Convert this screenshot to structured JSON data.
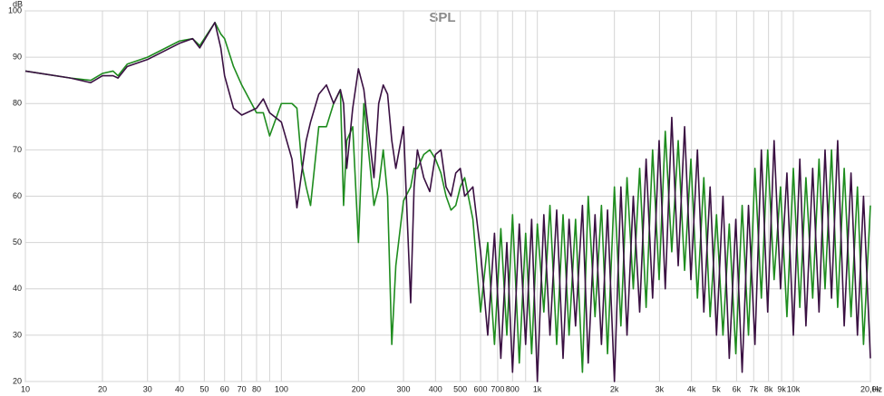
{
  "chart_data": {
    "type": "line",
    "title": "SPL",
    "y_unit": "dB",
    "x_unit": "Hz",
    "xlog": true,
    "grid": true,
    "xlim": [
      10,
      20000
    ],
    "ylim": [
      20,
      100
    ],
    "yticks": [
      20,
      30,
      40,
      50,
      60,
      70,
      80,
      90,
      100
    ],
    "xticks": [
      10,
      20,
      30,
      40,
      50,
      60,
      70,
      80,
      100,
      200,
      300,
      400,
      500,
      600,
      700,
      800,
      {
        "value": 1000,
        "label": "1k"
      },
      {
        "value": 2000,
        "label": "2k"
      },
      {
        "value": 3000,
        "label": "3k"
      },
      {
        "value": 4000,
        "label": "4k"
      },
      {
        "value": 5000,
        "label": "5k"
      },
      {
        "value": 6000,
        "label": "6k"
      },
      {
        "value": 7000,
        "label": "7k"
      },
      {
        "value": 8000,
        "label": "8k"
      },
      {
        "value": 9000,
        "label": "9k"
      },
      {
        "value": 10000,
        "label": "10k"
      },
      {
        "value": 20000,
        "label": "20,0k"
      }
    ],
    "xminor": [
      90,
      900
    ],
    "x": [
      10,
      15,
      18,
      20,
      22,
      23,
      25,
      30,
      40,
      45,
      48,
      55,
      58,
      60,
      65,
      70,
      80,
      85,
      90,
      100,
      110,
      115,
      120,
      125,
      130,
      140,
      150,
      160,
      170,
      175,
      180,
      190,
      200,
      210,
      230,
      240,
      250,
      260,
      270,
      280,
      300,
      320,
      330,
      340,
      360,
      380,
      400,
      420,
      440,
      460,
      480,
      500,
      520,
      560,
      600,
      640,
      680,
      720,
      760,
      800,
      850,
      900,
      950,
      1000,
      1060,
      1120,
      1190,
      1260,
      1330,
      1410,
      1500,
      1580,
      1680,
      1780,
      1880,
      2000,
      2120,
      2240,
      2370,
      2510,
      2660,
      2820,
      2990,
      3160,
      3350,
      3550,
      3760,
      3980,
      4220,
      4470,
      4730,
      5010,
      5310,
      5620,
      5960,
      6310,
      6680,
      7080,
      7500,
      7940,
      8410,
      8910,
      9440,
      10000,
      10600,
      11200,
      11900,
      12600,
      13300,
      14100,
      14900,
      15800,
      16800,
      17800,
      18800,
      20000
    ],
    "series": [
      {
        "color": "#1e8c1e",
        "values": [
          87,
          85.5,
          85,
          86.5,
          87,
          86,
          88.5,
          90,
          93.5,
          94,
          92.5,
          97.5,
          95,
          94,
          88,
          84,
          78,
          78,
          73,
          80,
          80,
          79,
          67,
          62,
          58,
          75,
          75,
          80,
          83,
          58,
          72,
          75,
          50,
          80,
          58,
          62,
          70,
          60,
          28,
          45,
          59,
          62,
          66,
          66,
          69,
          70,
          68,
          65,
          60,
          57,
          58,
          62,
          64,
          55,
          35,
          50,
          28,
          53,
          30,
          56,
          24,
          52,
          26,
          54,
          35,
          58,
          28,
          56,
          30,
          55,
          22,
          60,
          34,
          58,
          26,
          62,
          32,
          64,
          40,
          66,
          36,
          70,
          42,
          74,
          48,
          72,
          44,
          68,
          38,
          64,
          34,
          56,
          30,
          54,
          26,
          58,
          30,
          66,
          38,
          70,
          42,
          62,
          34,
          66,
          36,
          64,
          38,
          68,
          40,
          70,
          36,
          66,
          34,
          62,
          28,
          58
        ]
      },
      {
        "color": "#3a1042",
        "values": [
          87,
          85.5,
          84.5,
          86,
          86,
          85.5,
          88,
          89.5,
          93,
          94,
          92,
          97.5,
          92,
          86,
          79,
          77.5,
          79,
          81,
          78,
          76,
          68,
          57.5,
          65,
          72,
          76,
          82,
          84,
          80,
          83,
          80,
          66,
          79,
          87.5,
          83,
          64,
          80,
          84,
          82,
          72,
          66,
          75,
          37,
          62,
          70,
          64,
          61,
          69,
          70,
          62,
          60,
          65,
          66,
          60,
          62,
          48,
          30,
          52,
          25,
          50,
          22,
          54,
          28,
          55,
          20,
          56,
          30,
          57,
          25,
          55,
          32,
          58,
          24,
          56,
          28,
          57,
          20,
          62,
          30,
          60,
          35,
          68,
          38,
          72,
          40,
          77,
          45,
          75,
          42,
          70,
          35,
          62,
          30,
          60,
          25,
          55,
          22,
          58,
          28,
          70,
          35,
          72,
          40,
          65,
          30,
          68,
          32,
          66,
          35,
          70,
          38,
          72,
          32,
          65,
          30,
          60,
          25
        ]
      }
    ]
  }
}
